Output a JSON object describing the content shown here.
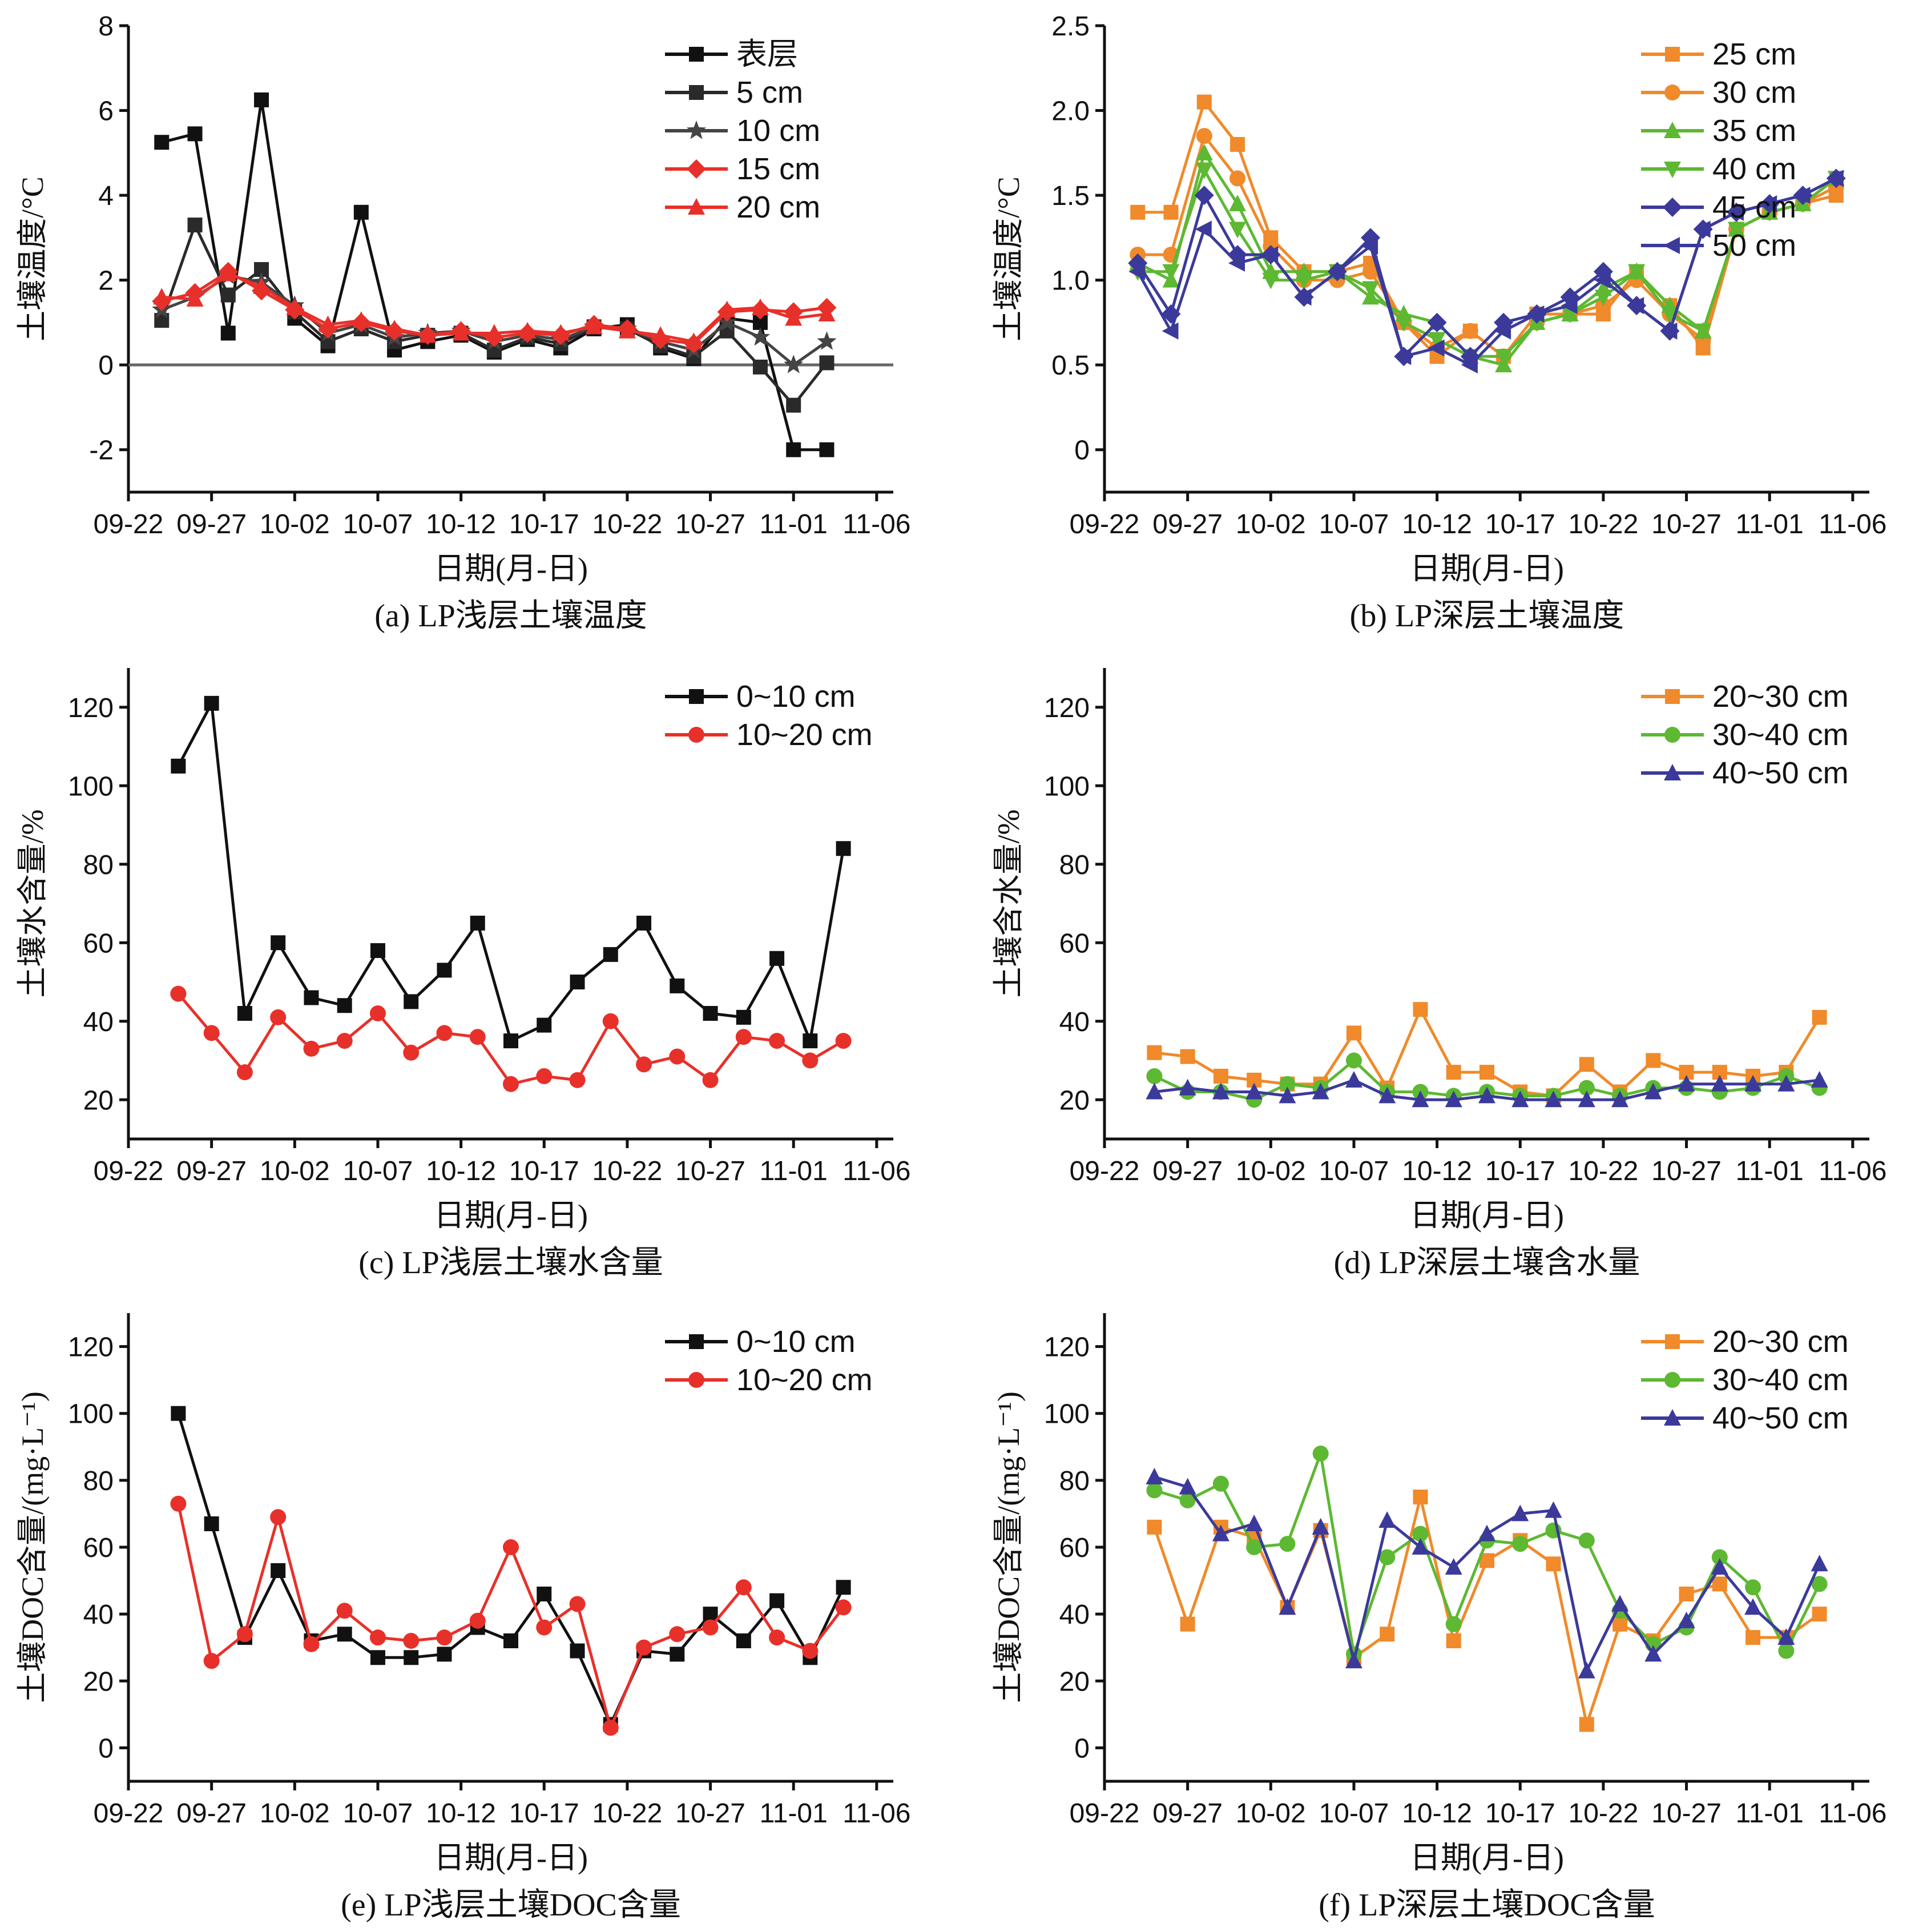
{
  "chart_data": [
    {
      "id": "a",
      "type": "line",
      "caption": "(a) LP浅层土壤温度",
      "xlabel": "日期(月-日)",
      "ylabel": "土壤温度/°C",
      "ylim": [
        -3,
        8
      ],
      "yticks": [
        -2,
        0,
        2,
        4,
        6,
        8
      ],
      "xlim": [
        0,
        46
      ],
      "xticks": [
        0,
        5,
        10,
        15,
        20,
        25,
        30,
        35,
        40,
        45
      ],
      "xticklabels": [
        "09-22",
        "09-27",
        "10-02",
        "10-07",
        "10-12",
        "10-17",
        "10-22",
        "10-27",
        "11-01",
        "11-06"
      ],
      "zero_line": true,
      "legend_position": "top-right",
      "x": [
        2,
        4,
        6,
        8,
        10,
        12,
        14,
        16,
        18,
        20,
        22,
        24,
        26,
        28,
        30,
        32,
        34,
        36,
        38,
        40,
        42,
        44
      ],
      "series": [
        {
          "name": "表层",
          "color": "#111111",
          "marker": "square",
          "values": [
            5.25,
            5.45,
            0.75,
            6.25,
            1.1,
            0.45,
            3.6,
            0.35,
            0.55,
            0.7,
            0.3,
            0.6,
            0.4,
            0.85,
            0.95,
            0.4,
            0.15,
            1.1,
            1.0,
            -2.0,
            -2.0,
            null
          ]
        },
        {
          "name": "5 cm",
          "color": "#2a2a2a",
          "marker": "square",
          "values": [
            1.05,
            3.3,
            1.65,
            2.25,
            1.25,
            0.55,
            0.85,
            0.55,
            0.7,
            0.75,
            0.35,
            0.65,
            0.5,
            0.9,
            0.85,
            0.45,
            0.2,
            0.8,
            -0.05,
            -0.95,
            0.05,
            null
          ]
        },
        {
          "name": "10 cm",
          "color": "#444444",
          "marker": "star",
          "values": [
            1.3,
            1.6,
            2.1,
            1.95,
            1.4,
            0.75,
            0.95,
            0.65,
            0.75,
            0.8,
            0.55,
            0.7,
            0.6,
            0.9,
            0.85,
            0.55,
            0.35,
            1.0,
            0.65,
            0.0,
            0.55,
            null
          ]
        },
        {
          "name": "15 cm",
          "color": "#e8302a",
          "marker": "diamond",
          "values": [
            1.5,
            1.7,
            2.2,
            1.75,
            1.3,
            0.85,
            1.0,
            0.8,
            0.7,
            0.8,
            0.65,
            0.75,
            0.7,
            0.95,
            0.85,
            0.6,
            0.5,
            1.25,
            1.3,
            1.25,
            1.35,
            null
          ]
        },
        {
          "name": "20 cm",
          "color": "#e8302a",
          "marker": "triangle",
          "values": [
            1.6,
            1.55,
            2.15,
            1.85,
            1.35,
            0.95,
            1.05,
            0.85,
            0.7,
            0.75,
            0.75,
            0.8,
            0.75,
            0.9,
            0.8,
            0.7,
            0.55,
            1.3,
            1.35,
            1.1,
            1.2,
            null
          ]
        }
      ]
    },
    {
      "id": "b",
      "type": "line",
      "caption": "(b) LP深层土壤温度",
      "xlabel": "日期(月-日)",
      "ylabel": "土壤温度/°C",
      "ylim": [
        -0.25,
        2.5
      ],
      "yticks": [
        0,
        0.5,
        1.0,
        1.5,
        2.0,
        2.5
      ],
      "yticklabels": [
        "0",
        "0.5",
        "1.0",
        "1.5",
        "2.0",
        "2.5"
      ],
      "xlim": [
        0,
        46
      ],
      "xticks": [
        0,
        5,
        10,
        15,
        20,
        25,
        30,
        35,
        40,
        45
      ],
      "xticklabels": [
        "09-22",
        "09-27",
        "10-02",
        "10-07",
        "10-12",
        "10-17",
        "10-22",
        "10-27",
        "11-01",
        "11-06"
      ],
      "legend_position": "top-right",
      "x": [
        2,
        4,
        6,
        8,
        10,
        12,
        14,
        16,
        18,
        20,
        22,
        24,
        26,
        28,
        30,
        32,
        34,
        36,
        38,
        40,
        42,
        44
      ],
      "series": [
        {
          "name": "25 cm",
          "color": "#f08a2a",
          "marker": "square",
          "values": [
            1.4,
            1.4,
            2.05,
            1.8,
            1.25,
            1.05,
            1.05,
            1.1,
            0.75,
            0.55,
            0.7,
            0.55,
            0.8,
            0.8,
            0.8,
            1.05,
            0.85,
            0.6,
            1.3,
            1.4,
            1.45,
            1.5
          ]
        },
        {
          "name": "30 cm",
          "color": "#f08a2a",
          "marker": "circle",
          "values": [
            1.15,
            1.15,
            1.85,
            1.6,
            1.2,
            1.0,
            1.0,
            1.05,
            0.75,
            0.6,
            0.7,
            0.55,
            0.75,
            0.8,
            0.85,
            1.0,
            0.8,
            0.65,
            1.3,
            1.4,
            1.45,
            1.55
          ]
        },
        {
          "name": "35 cm",
          "color": "#5db832",
          "marker": "triangle",
          "values": [
            1.1,
            1.0,
            1.75,
            1.45,
            1.05,
            1.05,
            1.05,
            0.9,
            0.8,
            0.75,
            0.55,
            0.5,
            0.75,
            0.8,
            0.95,
            1.05,
            0.85,
            0.7,
            1.3,
            1.4,
            1.45,
            1.6
          ]
        },
        {
          "name": "40 cm",
          "color": "#5db832",
          "marker": "triangle-down",
          "values": [
            1.05,
            1.05,
            1.65,
            1.3,
            1.0,
            1.0,
            1.05,
            0.95,
            0.75,
            0.65,
            0.55,
            0.55,
            0.75,
            0.8,
            0.9,
            1.05,
            0.8,
            0.7,
            1.3,
            1.4,
            1.45,
            1.6
          ]
        },
        {
          "name": "45 cm",
          "color": "#3b3a9a",
          "marker": "diamond",
          "values": [
            1.1,
            0.8,
            1.5,
            1.15,
            1.15,
            0.9,
            1.05,
            1.25,
            0.55,
            0.75,
            0.55,
            0.75,
            0.8,
            0.9,
            1.05,
            0.85,
            0.7,
            1.3,
            1.4,
            1.45,
            1.5,
            1.6
          ]
        },
        {
          "name": "50 cm",
          "color": "#3b3a9a",
          "marker": "triangle-left",
          "values": [
            1.05,
            0.7,
            1.3,
            1.1,
            1.15,
            0.9,
            1.05,
            1.2,
            0.55,
            0.6,
            0.5,
            0.7,
            0.8,
            0.85,
            1.0,
            0.85,
            0.7,
            1.3,
            1.4,
            1.45,
            1.5,
            1.6
          ]
        }
      ]
    },
    {
      "id": "c",
      "type": "line",
      "caption": "(c) LP浅层土壤水含量",
      "xlabel": "日期(月-日)",
      "ylabel": "土壤水含量/%",
      "ylim": [
        10,
        130
      ],
      "yticks": [
        20,
        40,
        60,
        80,
        100,
        120
      ],
      "xlim": [
        0,
        46
      ],
      "xticks": [
        0,
        5,
        10,
        15,
        20,
        25,
        30,
        35,
        40,
        45
      ],
      "xticklabels": [
        "09-22",
        "09-27",
        "10-02",
        "10-07",
        "10-12",
        "10-17",
        "10-22",
        "10-27",
        "11-01",
        "11-06"
      ],
      "legend_position": "top-right",
      "x": [
        3,
        5,
        7,
        9,
        11,
        13,
        15,
        17,
        19,
        21,
        23,
        25,
        27,
        29,
        31,
        33,
        35,
        37,
        39,
        41,
        43
      ],
      "series": [
        {
          "name": "0~10 cm",
          "color": "#111111",
          "marker": "square",
          "values": [
            105,
            121,
            42,
            60,
            46,
            44,
            58,
            45,
            53,
            65,
            35,
            39,
            50,
            57,
            65,
            49,
            42,
            41,
            56,
            35,
            84
          ]
        },
        {
          "name": "10~20 cm",
          "color": "#e8302a",
          "marker": "circle",
          "values": [
            47,
            37,
            27,
            41,
            33,
            35,
            42,
            32,
            37,
            36,
            24,
            26,
            25,
            40,
            29,
            31,
            25,
            36,
            35,
            30,
            35
          ]
        }
      ]
    },
    {
      "id": "d",
      "type": "line",
      "caption": "(d) LP深层土壤含水量",
      "xlabel": "日期(月-日)",
      "ylabel": "土壤含水量/%",
      "ylim": [
        10,
        130
      ],
      "yticks": [
        20,
        40,
        60,
        80,
        100,
        120
      ],
      "xlim": [
        0,
        46
      ],
      "xticks": [
        0,
        5,
        10,
        15,
        20,
        25,
        30,
        35,
        40,
        45
      ],
      "xticklabels": [
        "09-22",
        "09-27",
        "10-02",
        "10-07",
        "10-12",
        "10-17",
        "10-22",
        "10-27",
        "11-01",
        "11-06"
      ],
      "legend_position": "top-right",
      "x": [
        3,
        5,
        7,
        9,
        11,
        13,
        15,
        17,
        19,
        21,
        23,
        25,
        27,
        29,
        31,
        33,
        35,
        37,
        39,
        41,
        43
      ],
      "series": [
        {
          "name": "20~30 cm",
          "color": "#f08a2a",
          "marker": "square",
          "values": [
            32,
            31,
            26,
            25,
            24,
            24,
            37,
            23,
            43,
            27,
            27,
            22,
            21,
            29,
            22,
            30,
            27,
            27,
            26,
            27,
            41
          ]
        },
        {
          "name": "30~40 cm",
          "color": "#5db832",
          "marker": "circle",
          "values": [
            26,
            22,
            22,
            20,
            24,
            23,
            30,
            22,
            22,
            21,
            22,
            21,
            21,
            23,
            21,
            23,
            23,
            22,
            23,
            26,
            23
          ]
        },
        {
          "name": "40~50 cm",
          "color": "#3b3a9a",
          "marker": "triangle",
          "values": [
            22,
            23,
            22,
            22,
            21,
            22,
            25,
            21,
            20,
            20,
            21,
            20,
            20,
            20,
            20,
            22,
            24,
            24,
            24,
            24,
            25
          ]
        }
      ]
    },
    {
      "id": "e",
      "type": "line",
      "caption": "(e) LP浅层土壤DOC含量",
      "xlabel": "日期(月-日)",
      "ylabel": "土壤DOC含量/(mg·L⁻¹)",
      "ylim": [
        -10,
        130
      ],
      "yticks": [
        0,
        20,
        40,
        60,
        80,
        100,
        120
      ],
      "xlim": [
        0,
        46
      ],
      "xticks": [
        0,
        5,
        10,
        15,
        20,
        25,
        30,
        35,
        40,
        45
      ],
      "xticklabels": [
        "09-22",
        "09-27",
        "10-02",
        "10-07",
        "10-12",
        "10-17",
        "10-22",
        "10-27",
        "11-01",
        "11-06"
      ],
      "legend_position": "top-right",
      "x": [
        3,
        5,
        7,
        9,
        11,
        13,
        15,
        17,
        19,
        21,
        23,
        25,
        27,
        29,
        31,
        33,
        35,
        37,
        39,
        41,
        43
      ],
      "series": [
        {
          "name": "0~10 cm",
          "color": "#111111",
          "marker": "square",
          "values": [
            100,
            67,
            33,
            53,
            32,
            34,
            27,
            27,
            28,
            36,
            32,
            46,
            29,
            7,
            29,
            28,
            40,
            32,
            44,
            27,
            48
          ]
        },
        {
          "name": "10~20 cm",
          "color": "#e8302a",
          "marker": "circle",
          "values": [
            73,
            26,
            34,
            69,
            31,
            41,
            33,
            32,
            33,
            38,
            60,
            36,
            43,
            6,
            30,
            34,
            36,
            48,
            33,
            29,
            42
          ]
        }
      ]
    },
    {
      "id": "f",
      "type": "line",
      "caption": "(f) LP深层土壤DOC含量",
      "xlabel": "日期(月-日)",
      "ylabel": "土壤DOC含量/(mg·L⁻¹)",
      "ylim": [
        -10,
        130
      ],
      "yticks": [
        0,
        20,
        40,
        60,
        80,
        100,
        120
      ],
      "xlim": [
        0,
        46
      ],
      "xticks": [
        0,
        5,
        10,
        15,
        20,
        25,
        30,
        35,
        40,
        45
      ],
      "xticklabels": [
        "09-22",
        "09-27",
        "10-02",
        "10-07",
        "10-12",
        "10-17",
        "10-22",
        "10-27",
        "11-01",
        "11-06"
      ],
      "legend_position": "top-right",
      "x": [
        3,
        5,
        7,
        9,
        11,
        13,
        15,
        17,
        19,
        21,
        23,
        25,
        27,
        29,
        31,
        33,
        35,
        37,
        39,
        41,
        43
      ],
      "series": [
        {
          "name": "20~30 cm",
          "color": "#f08a2a",
          "marker": "square",
          "values": [
            66,
            37,
            66,
            63,
            42,
            65,
            27,
            34,
            75,
            32,
            56,
            62,
            55,
            7,
            37,
            32,
            46,
            49,
            33,
            33,
            40
          ]
        },
        {
          "name": "30~40 cm",
          "color": "#5db832",
          "marker": "circle",
          "values": [
            77,
            74,
            79,
            60,
            61,
            88,
            28,
            57,
            64,
            37,
            62,
            61,
            65,
            62,
            41,
            31,
            36,
            57,
            48,
            29,
            49
          ]
        },
        {
          "name": "40~50 cm",
          "color": "#3b3a9a",
          "marker": "triangle",
          "values": [
            81,
            78,
            64,
            67,
            42,
            66,
            26,
            68,
            60,
            54,
            64,
            70,
            71,
            23,
            43,
            28,
            38,
            54,
            42,
            33,
            55
          ]
        }
      ]
    }
  ]
}
